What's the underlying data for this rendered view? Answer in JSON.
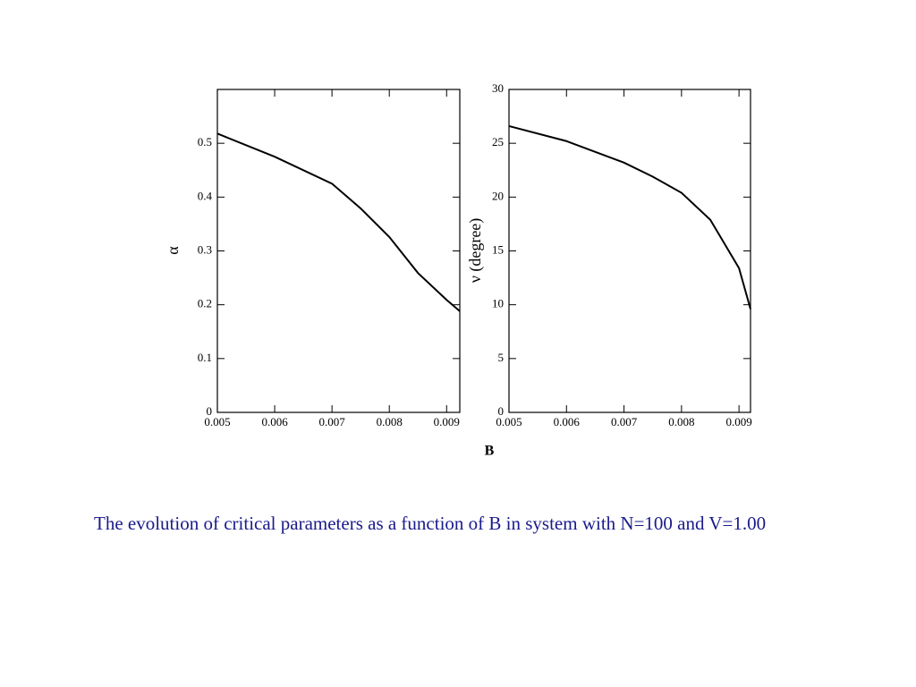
{
  "chart_data": [
    {
      "type": "line",
      "ylabel": "α",
      "color": "#000000",
      "x": [
        0.005,
        0.006,
        0.007,
        0.0075,
        0.008,
        0.0085,
        0.009,
        0.00923
      ],
      "values": [
        0.518,
        0.475,
        0.425,
        0.379,
        0.326,
        0.259,
        0.209,
        0.188
      ],
      "xlim": [
        0.005,
        0.00923
      ],
      "xticks": [
        0.005,
        0.006,
        0.007,
        0.008,
        0.009
      ],
      "ylim": [
        0,
        0.6
      ],
      "yticks": [
        0,
        0.1,
        0.2,
        0.3,
        0.4,
        0.5
      ]
    },
    {
      "type": "line",
      "ylabel": "ν (degree)",
      "color": "#000000",
      "x": [
        0.005,
        0.006,
        0.007,
        0.0075,
        0.008,
        0.0085,
        0.009,
        0.0092
      ],
      "values": [
        26.6,
        25.2,
        23.2,
        21.9,
        20.4,
        17.9,
        13.4,
        9.6
      ],
      "xlim": [
        0.005,
        0.0092
      ],
      "xticks": [
        0.005,
        0.006,
        0.007,
        0.008,
        0.009
      ],
      "ylim": [
        0,
        30
      ],
      "yticks": [
        0,
        5,
        10,
        15,
        20,
        25,
        30
      ]
    }
  ],
  "shared_xlabel": "B",
  "caption": "The evolution of critical parameters as a function of  B in system with N=100 and V=1.00"
}
